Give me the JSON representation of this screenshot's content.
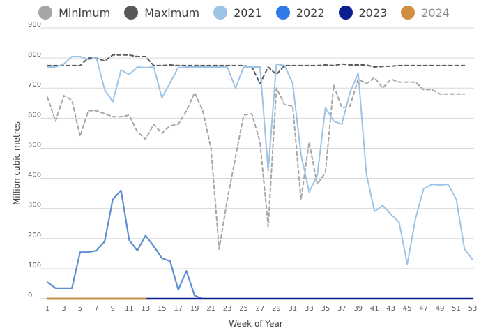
{
  "chart_data": {
    "type": "line",
    "title": "",
    "xlabel": "Week of Year",
    "ylabel": "Million cubic metres",
    "ylim": [
      0,
      900
    ],
    "xlim": [
      1,
      53
    ],
    "y_ticks": [
      "0",
      "100",
      "200",
      "300",
      "400",
      "500",
      "600",
      "700",
      "800",
      "900"
    ],
    "x_ticks": [
      "1",
      "3",
      "5",
      "7",
      "9",
      "11",
      "13",
      "15",
      "17",
      "19",
      "21",
      "23",
      "25",
      "27",
      "29",
      "31",
      "33",
      "35",
      "37",
      "39",
      "41",
      "43",
      "45",
      "47",
      "49",
      "51",
      "53"
    ],
    "legend_position": "top-center",
    "grid": "horizontal",
    "series": [
      {
        "name": "Minimum",
        "color": "#a6a6a6",
        "style": "dashed",
        "values": [
          670,
          590,
          675,
          660,
          540,
          625,
          625,
          615,
          605,
          605,
          610,
          555,
          530,
          580,
          550,
          575,
          580,
          625,
          685,
          625,
          500,
          165,
          330,
          470,
          610,
          615,
          520,
          240,
          700,
          645,
          640,
          330,
          520,
          380,
          420,
          710,
          635,
          640,
          730,
          715,
          735,
          700,
          730,
          720,
          720,
          720,
          695,
          695,
          680,
          680,
          680,
          680
        ]
      },
      {
        "name": "Maximum",
        "color": "#595959",
        "style": "dashed",
        "values": [
          775,
          775,
          775,
          775,
          775,
          800,
          800,
          790,
          810,
          810,
          810,
          805,
          805,
          775,
          775,
          777,
          775,
          775,
          775,
          775,
          775,
          775,
          775,
          775,
          775,
          770,
          715,
          770,
          745,
          775,
          775,
          775,
          775,
          775,
          777,
          775,
          780,
          777,
          777,
          777,
          770,
          772,
          773,
          775,
          775,
          775,
          775,
          775,
          775,
          775,
          775,
          775
        ]
      },
      {
        "name": "2021",
        "color": "#9dc3e6",
        "style": "solid",
        "values": [
          770,
          770,
          780,
          805,
          805,
          795,
          800,
          695,
          655,
          760,
          745,
          770,
          768,
          770,
          668,
          718,
          768,
          770,
          770,
          770,
          770,
          770,
          770,
          700,
          770,
          770,
          770,
          425,
          780,
          775,
          715,
          480,
          355,
          410,
          635,
          590,
          580,
          685,
          750,
          415,
          290,
          310,
          280,
          255,
          115,
          265,
          365,
          380,
          378,
          380,
          330,
          165,
          130
        ]
      },
      {
        "name": "2022",
        "color": "#5b8fd1",
        "style": "solid",
        "values": [
          55,
          35,
          35,
          35,
          155,
          155,
          160,
          190,
          330,
          360,
          195,
          160,
          210,
          175,
          135,
          125,
          30,
          92,
          10,
          0
        ]
      },
      {
        "name": "2023",
        "color": "#0b1f8f",
        "style": "solid",
        "values": [
          0,
          0,
          0,
          0,
          0,
          0,
          0,
          0,
          0,
          0,
          0,
          0,
          0,
          0,
          0,
          0,
          0,
          0,
          0,
          0,
          0,
          0,
          0,
          0,
          0,
          0,
          0,
          0,
          0,
          0,
          0,
          0,
          0,
          0,
          0,
          0,
          0,
          0,
          0,
          0,
          0,
          0,
          0,
          0,
          0,
          0,
          0,
          0,
          0,
          0,
          0,
          0,
          0
        ]
      },
      {
        "name": "2024",
        "color": "#c98f45",
        "style": "solid",
        "values": [
          0,
          0,
          0,
          0,
          0,
          0,
          0,
          0,
          0,
          0,
          0,
          0,
          0
        ]
      }
    ],
    "legend": [
      {
        "label": "Minimum",
        "color": "#a6a6a6",
        "muted": false
      },
      {
        "label": "Maximum",
        "color": "#595959",
        "muted": false
      },
      {
        "label": "2021",
        "color": "#9dc3e6",
        "muted": false
      },
      {
        "label": "2022",
        "color": "#2f7be8",
        "muted": false
      },
      {
        "label": "2023",
        "color": "#0b1f8f",
        "muted": false
      },
      {
        "label": "2024",
        "color": "#d08f3e",
        "muted": true
      }
    ]
  }
}
